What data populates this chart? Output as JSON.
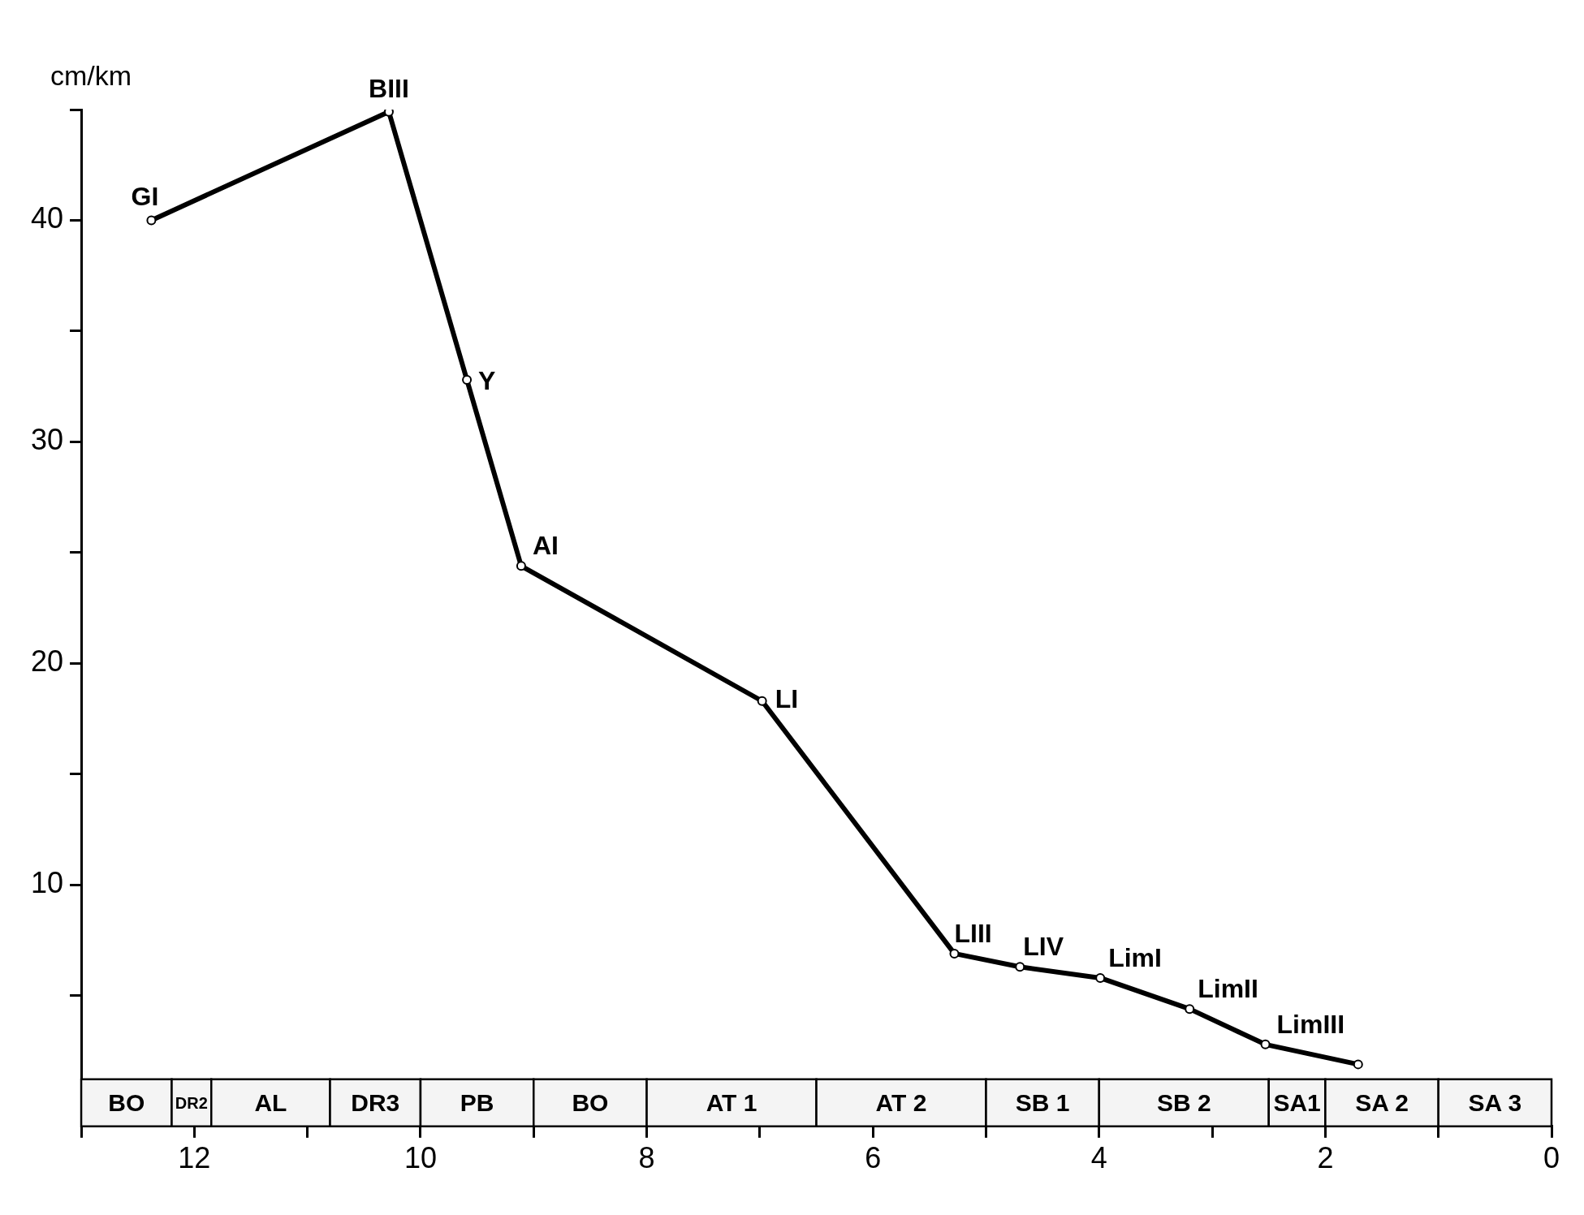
{
  "chart_data": {
    "type": "line",
    "ylabel": "cm/km",
    "x": [
      12.38,
      10.28,
      9.59,
      9.11,
      6.98,
      5.28,
      4.7,
      3.99,
      3.2,
      2.53,
      1.71
    ],
    "series": [
      {
        "color": "#000000",
        "values": [
          40,
          44.9,
          32.8,
          24.4,
          18.3,
          6.9,
          6.3,
          5.8,
          4.4,
          2.8,
          1.9
        ]
      }
    ],
    "xlim": [
      13,
      0
    ],
    "ylim": [
      -0.9,
      45
    ],
    "xticks": [
      {
        "value": 13,
        "label": null
      },
      12,
      {
        "value": 11,
        "label": null
      },
      10,
      {
        "value": 9,
        "label": null
      },
      8,
      {
        "value": 7,
        "label": null
      },
      6,
      {
        "value": 5,
        "label": null
      },
      4,
      {
        "value": 3,
        "label": null
      },
      2,
      {
        "value": 1,
        "label": null
      },
      0
    ],
    "yticks": [
      {
        "value": 5,
        "label": null
      },
      10,
      {
        "value": 15,
        "label": null
      },
      20,
      {
        "value": 25,
        "label": null
      },
      30,
      {
        "value": 35,
        "label": null
      },
      40,
      {
        "value": 45,
        "label": null
      }
    ],
    "marker": "circle",
    "line_style": "solid",
    "grid": false,
    "legend": false,
    "annotations": [
      {
        "text": "GI",
        "x": 12.38,
        "y": 40
      },
      {
        "text": "BIII",
        "x": 10.28,
        "y": 44.9
      },
      {
        "text": "Y",
        "x": 9.59,
        "y": 32.8
      },
      {
        "text": "AI",
        "x": 9.11,
        "y": 24.4
      },
      {
        "text": "LI",
        "x": 6.98,
        "y": 18.3
      },
      {
        "text": "LIII",
        "x": 5.28,
        "y": 6.9
      },
      {
        "text": "LIV",
        "x": 4.7,
        "y": 6.3
      },
      {
        "text": "LimI",
        "x": 3.99,
        "y": 5.8
      },
      {
        "text": "LimII",
        "x": 3.2,
        "y": 4.4
      },
      {
        "text": "LimIII",
        "x": 2.53,
        "y": 2.8
      }
    ],
    "bands": [
      {
        "axis": "x",
        "from": 13,
        "to": 12.2,
        "label": "BO",
        "color": "#f4f4f4"
      },
      {
        "axis": "x",
        "from": 12.2,
        "to": 11.85,
        "label": "DR2",
        "color": "#f4f4f4"
      },
      {
        "axis": "x",
        "from": 11.85,
        "to": 10.8,
        "label": "AL",
        "color": "#f4f4f4"
      },
      {
        "axis": "x",
        "from": 10.8,
        "to": 10,
        "label": "DR3",
        "color": "#f4f4f4"
      },
      {
        "axis": "x",
        "from": 10,
        "to": 9,
        "label": "PB",
        "color": "#f4f4f4"
      },
      {
        "axis": "x",
        "from": 9,
        "to": 8,
        "label": "BO",
        "color": "#f4f4f4"
      },
      {
        "axis": "x",
        "from": 8,
        "to": 6.5,
        "label": "AT 1",
        "color": "#f4f4f4"
      },
      {
        "axis": "x",
        "from": 6.5,
        "to": 5,
        "label": "AT 2",
        "color": "#f4f4f4"
      },
      {
        "axis": "x",
        "from": 5,
        "to": 4,
        "label": "SB 1",
        "color": "#f4f4f4"
      },
      {
        "axis": "x",
        "from": 4,
        "to": 2.5,
        "label": "SB 2",
        "color": "#f4f4f4"
      },
      {
        "axis": "x",
        "from": 2.5,
        "to": 2,
        "label": "SA1",
        "color": "#f4f4f4"
      },
      {
        "axis": "x",
        "from": 2,
        "to": 1,
        "label": "SA 2",
        "color": "#f4f4f4"
      },
      {
        "axis": "x",
        "from": 1,
        "to": 0,
        "label": "SA 3",
        "color": "#f4f4f4"
      }
    ]
  }
}
